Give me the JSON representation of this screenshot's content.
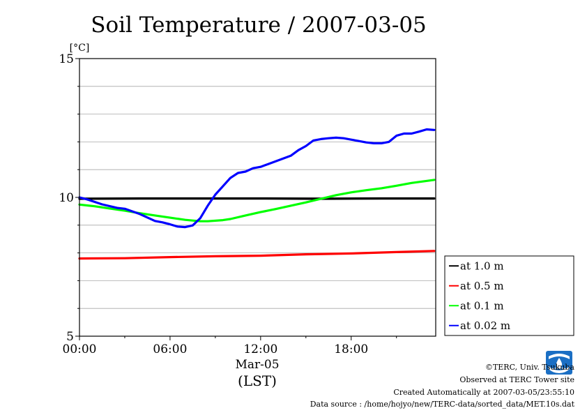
{
  "chart_data": {
    "type": "line",
    "title": "Soil Temperature / 2007-03-05",
    "ylabel": "[°C]",
    "ylim": [
      5,
      15
    ],
    "yticks": [
      5,
      10,
      15
    ],
    "ygrid_step": 1,
    "xlim_hours": [
      0,
      23.6
    ],
    "xticks": [
      {
        "hour": 0,
        "label": "00:00"
      },
      {
        "hour": 6,
        "label": "06:00"
      },
      {
        "hour": 12,
        "label": "12:00"
      },
      {
        "hour": 18,
        "label": "18:00"
      }
    ],
    "xdate": "Mar-05",
    "xunit": "(LST)",
    "grid": true,
    "legend_position": "lower-right-outside",
    "series": [
      {
        "name": "at 1.0 m",
        "color": "#000000",
        "points": [
          [
            0,
            9.95
          ],
          [
            4,
            9.96
          ],
          [
            8,
            9.96
          ],
          [
            12,
            9.96
          ],
          [
            16,
            9.95
          ],
          [
            20,
            9.96
          ],
          [
            23.5,
            9.96
          ]
        ]
      },
      {
        "name": "at 0.5 m",
        "color": "#ff0000",
        "points": [
          [
            0,
            7.8
          ],
          [
            3,
            7.81
          ],
          [
            6,
            7.85
          ],
          [
            9,
            7.88
          ],
          [
            12,
            7.9
          ],
          [
            15,
            7.95
          ],
          [
            18,
            7.98
          ],
          [
            21,
            8.03
          ],
          [
            23.5,
            8.07
          ]
        ]
      },
      {
        "name": "at 0.1 m",
        "color": "#00ff00",
        "points": [
          [
            0,
            9.74
          ],
          [
            1,
            9.68
          ],
          [
            2,
            9.6
          ],
          [
            3,
            9.52
          ],
          [
            4,
            9.43
          ],
          [
            5,
            9.35
          ],
          [
            6,
            9.27
          ],
          [
            7,
            9.19
          ],
          [
            8,
            9.14
          ],
          [
            8.5,
            9.14
          ],
          [
            9.5,
            9.18
          ],
          [
            10,
            9.22
          ],
          [
            11,
            9.35
          ],
          [
            12,
            9.47
          ],
          [
            13,
            9.58
          ],
          [
            14,
            9.7
          ],
          [
            15,
            9.82
          ],
          [
            16,
            9.95
          ],
          [
            17,
            10.08
          ],
          [
            18,
            10.18
          ],
          [
            19,
            10.26
          ],
          [
            20,
            10.33
          ],
          [
            21,
            10.42
          ],
          [
            22,
            10.52
          ],
          [
            23.5,
            10.63
          ]
        ]
      },
      {
        "name": "at 0.02 m",
        "color": "#0000ff",
        "points": [
          [
            0,
            10.0
          ],
          [
            0.5,
            9.93
          ],
          [
            1.5,
            9.75
          ],
          [
            2.5,
            9.62
          ],
          [
            3,
            9.59
          ],
          [
            4,
            9.4
          ],
          [
            5,
            9.15
          ],
          [
            5.5,
            9.1
          ],
          [
            6,
            9.03
          ],
          [
            6.5,
            8.95
          ],
          [
            7,
            8.93
          ],
          [
            7.5,
            8.99
          ],
          [
            8,
            9.25
          ],
          [
            8.5,
            9.7
          ],
          [
            9,
            10.1
          ],
          [
            9.5,
            10.4
          ],
          [
            10,
            10.7
          ],
          [
            10.5,
            10.88
          ],
          [
            11,
            10.93
          ],
          [
            11.5,
            11.05
          ],
          [
            12,
            11.1
          ],
          [
            12.5,
            11.2
          ],
          [
            13,
            11.3
          ],
          [
            13.5,
            11.4
          ],
          [
            14,
            11.5
          ],
          [
            14.5,
            11.7
          ],
          [
            15,
            11.85
          ],
          [
            15.5,
            12.05
          ],
          [
            16,
            12.1
          ],
          [
            16.5,
            12.13
          ],
          [
            17,
            12.15
          ],
          [
            17.5,
            12.13
          ],
          [
            18,
            12.08
          ],
          [
            18.5,
            12.03
          ],
          [
            19,
            11.98
          ],
          [
            19.5,
            11.95
          ],
          [
            20,
            11.95
          ],
          [
            20.5,
            12.0
          ],
          [
            21,
            12.22
          ],
          [
            21.5,
            12.3
          ],
          [
            22,
            12.3
          ],
          [
            22.5,
            12.37
          ],
          [
            23,
            12.45
          ],
          [
            23.5,
            12.43
          ]
        ]
      }
    ]
  },
  "footer": {
    "copyright": "©TERC, Univ. Tsukuba",
    "observed": "Observed at TERC Tower site",
    "created": "Created Automatically at 2007-03-05/23:55:10",
    "source": "Data source : /home/hojyo/new/TERC-data/sorted_data/MET.10s.dat"
  },
  "logo": {
    "text": "TERC",
    "color": "#1b6fc4"
  }
}
